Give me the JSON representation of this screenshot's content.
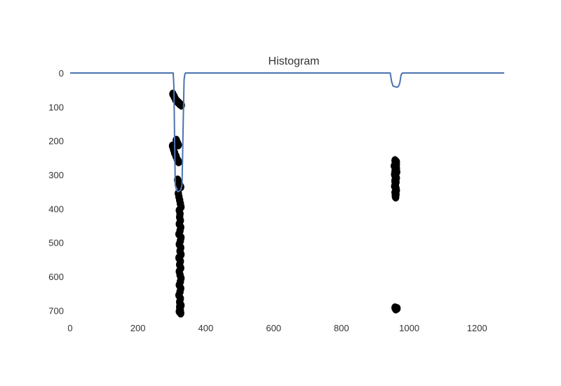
{
  "chart_data": {
    "type": "line",
    "title": "Histogram",
    "xlabel": "",
    "ylabel": "",
    "xlim": [
      0,
      1280
    ],
    "ylim": [
      720,
      0
    ],
    "y_axis_inverted": true,
    "grid": false,
    "x_ticks": [
      0,
      200,
      400,
      600,
      800,
      1000,
      1200
    ],
    "y_ticks": [
      0,
      100,
      200,
      300,
      400,
      500,
      600,
      700
    ],
    "line_color": "#4c72b0",
    "marker_color": "#000000",
    "series": [
      {
        "type": "line",
        "x": [
          0,
          304,
          306,
          308,
          310,
          314,
          318,
          322,
          326,
          330,
          334,
          336,
          338,
          340,
          344,
          940,
          944,
          948,
          952,
          956,
          960,
          964,
          968,
          972,
          976,
          980,
          1280
        ],
        "y": [
          0,
          0,
          40,
          180,
          330,
          345,
          350,
          348,
          345,
          330,
          120,
          20,
          5,
          0,
          0,
          0,
          0,
          25,
          38,
          40,
          41,
          42,
          40,
          30,
          5,
          0,
          0
        ]
      },
      {
        "type": "scatter",
        "x": [
          303,
          307,
          311,
          316,
          320,
          324,
          328,
          302,
          305,
          308,
          312,
          316,
          320,
          313,
          316,
          319,
          317,
          320,
          323,
          326,
          319,
          321,
          323,
          325,
          327,
          322,
          324,
          323,
          325,
          322,
          326,
          324,
          321,
          327,
          325,
          322,
          326,
          324,
          327,
          321,
          325,
          323,
          326,
          322,
          324,
          327,
          325,
          322,
          326,
          324,
          321,
          325,
          323,
          327,
          324,
          322,
          326,
          325,
          323,
          324,
          958,
          962,
          960,
          956,
          961,
          959,
          963,
          957,
          960,
          962,
          958,
          961,
          959,
          957,
          960,
          962,
          958,
          961,
          959,
          960,
          962,
          958,
          961,
          959,
          960,
          957,
          962,
          958,
          961,
          959,
          960,
          962,
          958,
          960,
          964
        ],
        "y": [
          62,
          70,
          78,
          84,
          88,
          92,
          95,
          215,
          225,
          235,
          245,
          255,
          262,
          198,
          205,
          212,
          315,
          322,
          330,
          336,
          355,
          365,
          375,
          385,
          395,
          405,
          415,
          425,
          435,
          445,
          455,
          465,
          475,
          485,
          495,
          505,
          515,
          525,
          535,
          545,
          555,
          565,
          575,
          585,
          595,
          605,
          615,
          625,
          635,
          645,
          655,
          665,
          675,
          685,
          695,
          703,
          708,
          700,
          690,
          680,
          258,
          262,
          268,
          274,
          280,
          286,
          292,
          298,
          304,
          310,
          316,
          322,
          328,
          334,
          340,
          346,
          352,
          358,
          364,
          366,
          270,
          290,
          310,
          330,
          350,
          300,
          280,
          320,
          340,
          360,
          265,
          285,
          692,
          696,
          694
        ]
      }
    ]
  }
}
